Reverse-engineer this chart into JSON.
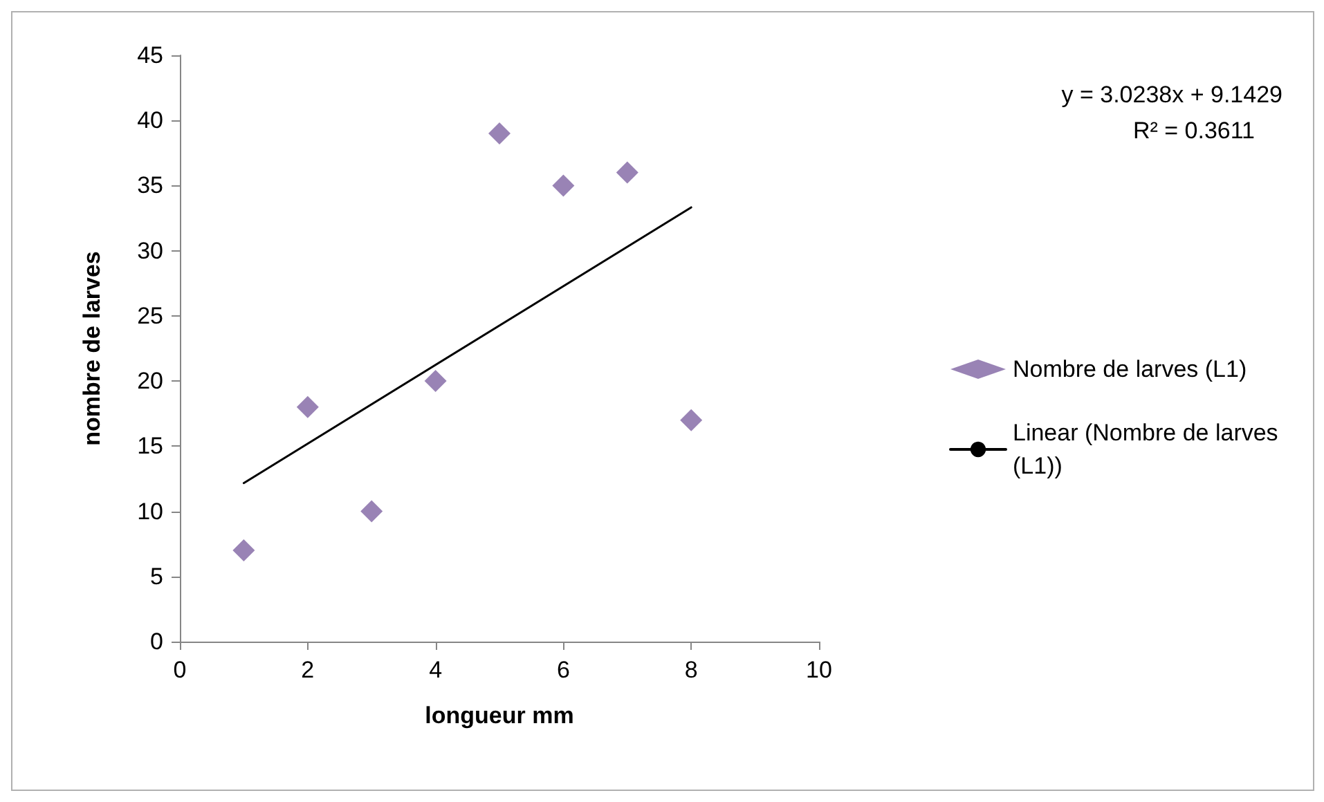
{
  "chart_data": {
    "type": "scatter",
    "xlabel": "longueur mm",
    "ylabel": "nombre de larves",
    "x": [
      1,
      2,
      3,
      4,
      5,
      6,
      7,
      8
    ],
    "series": [
      {
        "name": "Nombre de larves (L1)",
        "color": "#8064a2",
        "values": [
          7,
          18,
          10,
          20,
          39,
          35,
          36,
          17
        ],
        "marker": "diamond"
      },
      {
        "name": "Linear (Nombre de larves (L1))",
        "type": "line",
        "color": "#000000",
        "x": [
          1,
          8
        ],
        "values": [
          12.17,
          33.33
        ],
        "marker": "none",
        "line_style": "solid"
      }
    ],
    "annotations": [
      "y = 3.0238x + 9.1429",
      "R² = 0.3611"
    ],
    "xlim": [
      0,
      10
    ],
    "xticks": [
      0,
      2,
      4,
      6,
      8,
      10
    ],
    "ylim": [
      0,
      45
    ],
    "yticks": [
      0,
      5,
      10,
      15,
      20,
      25,
      30,
      35,
      40,
      45
    ],
    "grid": false,
    "legend": "right"
  }
}
